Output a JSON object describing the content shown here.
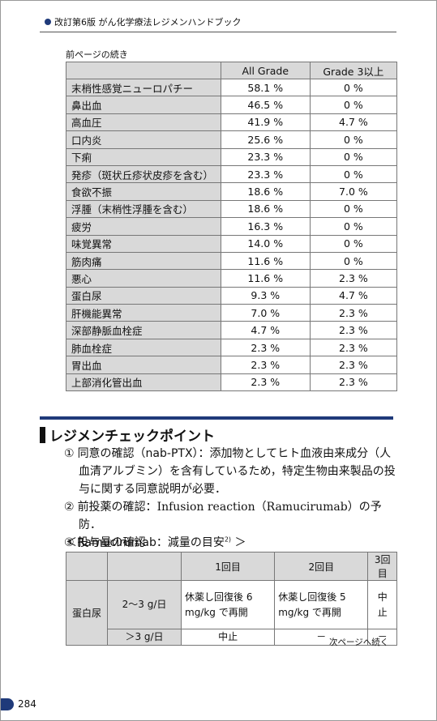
{
  "header": {
    "title": "改訂第6版 がん化学療法レジメンハンドブック"
  },
  "continued_note": "前ページの続き",
  "table1": {
    "columns": [
      "All Grade",
      "Grade 3以上"
    ],
    "rows": [
      [
        "末梢性感覚ニューロパチー",
        "58.1 %",
        "0 %"
      ],
      [
        "鼻出血",
        "46.5 %",
        "0 %"
      ],
      [
        "高血圧",
        "41.9 %",
        "4.7 %"
      ],
      [
        "口内炎",
        "25.6 %",
        "0 %"
      ],
      [
        "下痢",
        "23.3 %",
        "0 %"
      ],
      [
        "発疹（斑状丘疹状皮疹を含む）",
        "23.3 %",
        "0 %"
      ],
      [
        "食欲不振",
        "18.6 %",
        "7.0 %"
      ],
      [
        "浮腫（末梢性浮腫を含む）",
        "18.6 %",
        "0 %"
      ],
      [
        "疲労",
        "16.3 %",
        "0 %"
      ],
      [
        "味覚異常",
        "14.0 %",
        "0 %"
      ],
      [
        "筋肉痛",
        "11.6 %",
        "0 %"
      ],
      [
        "悪心",
        "11.6 %",
        "2.3 %"
      ],
      [
        "蛋白尿",
        "9.3 %",
        "4.7 %"
      ],
      [
        "肝機能異常",
        "7.0 %",
        "2.3 %"
      ],
      [
        "深部静脈血栓症",
        "4.7 %",
        "2.3 %"
      ],
      [
        "肺血栓症",
        "2.3 %",
        "2.3 %"
      ],
      [
        "胃出血",
        "2.3 %",
        "2.3 %"
      ],
      [
        "上部消化管出血",
        "2.3 %",
        "2.3 %"
      ]
    ]
  },
  "section": {
    "title": "レジメンチェックポイント",
    "items": [
      {
        "number": "①",
        "label": "同意の確認（nab-PTX）：",
        "text": "添加物としてヒト血液由来成分（人血清アルブミン）を含有しているため，特定生物由来製品の投与に関する同意説明が必要．"
      },
      {
        "number": "②",
        "label": "前投薬の確認：",
        "text": "Infusion reaction（Ramucirumab）の予防．"
      },
      {
        "number": "③",
        "label": "投与量の確認",
        "text": ""
      }
    ],
    "subheading": {
      "open": "＜Ramucirumab：減量の目安",
      "sup": "2)",
      "close": " ＞"
    }
  },
  "table2": {
    "columns": [
      "1回目",
      "2回目",
      "3回目"
    ],
    "row_label": "蛋白尿",
    "rows": [
      [
        "2～3 g/日",
        "休薬し回復後 6 mg/kg で再開",
        "休薬し回復後 5 mg/kg で再開",
        "中止"
      ],
      [
        "＞3 g/日",
        "中止",
        "－",
        "－"
      ]
    ]
  },
  "next_note": "次ページへ続く",
  "page_number": "284"
}
